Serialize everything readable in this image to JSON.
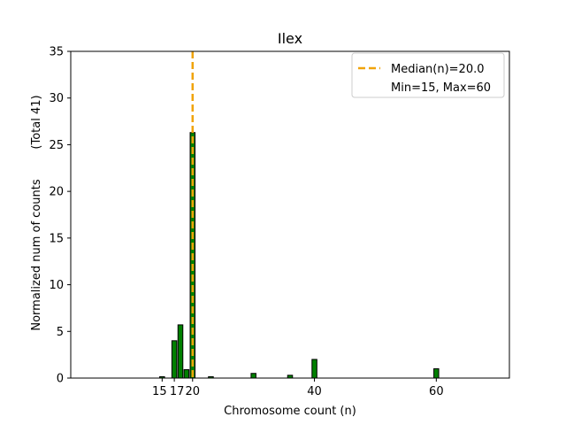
{
  "chart_data": {
    "type": "bar",
    "title": "Ilex",
    "xlabel": "Chromosome count (n)",
    "ylabel": "Normalized num of counts",
    "ylabel_total": "(Total 41)",
    "xlim": [
      0,
      72
    ],
    "ylim": [
      0,
      35
    ],
    "xticks": [
      15,
      17,
      20,
      40,
      60
    ],
    "yticks": [
      0,
      5,
      10,
      15,
      20,
      25,
      30,
      35
    ],
    "bars": [
      {
        "x": 15,
        "value": 0.15
      },
      {
        "x": 17,
        "value": 4.0
      },
      {
        "x": 18,
        "value": 5.7
      },
      {
        "x": 19,
        "value": 0.9
      },
      {
        "x": 20,
        "value": 26.3
      },
      {
        "x": 23,
        "value": 0.15
      },
      {
        "x": 30,
        "value": 0.5
      },
      {
        "x": 36,
        "value": 0.3
      },
      {
        "x": 40,
        "value": 2.0
      },
      {
        "x": 60,
        "value": 1.0
      }
    ],
    "bar_color": "#008000",
    "median": 20.0,
    "median_color": "#f0a30a",
    "legend": {
      "position": "top-right",
      "entries": [
        "Median(n)=20.0",
        "Min=15, Max=60"
      ]
    },
    "grid": false
  }
}
